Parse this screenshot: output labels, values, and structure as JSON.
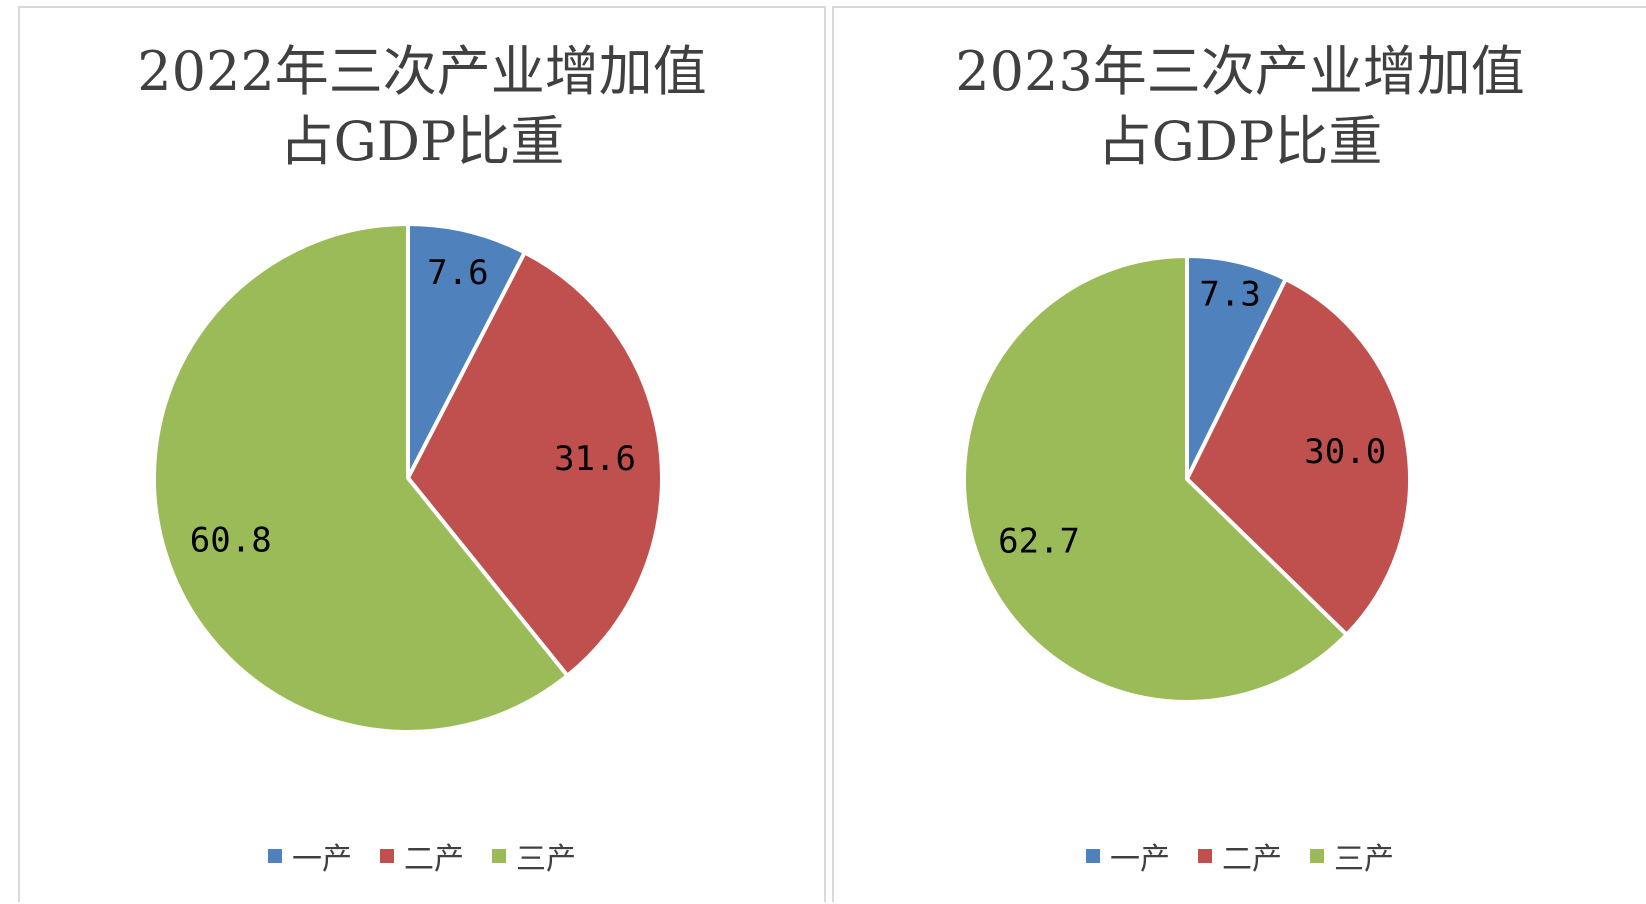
{
  "colors": {
    "primary": "#4f81bd",
    "secondary": "#c0504d",
    "tertiary": "#9bbb59"
  },
  "chart_data": [
    {
      "type": "pie",
      "title_line1": "2022年三次产业增加值",
      "title_line2": "占GDP比重",
      "categories": [
        "一产",
        "二产",
        "三产"
      ],
      "values": [
        7.6,
        31.6,
        60.8
      ],
      "labels": [
        "7.6",
        "31.6",
        "60.8"
      ],
      "legend": "bottom"
    },
    {
      "type": "pie",
      "title_line1": "2023年三次产业增加值",
      "title_line2": "占GDP比重",
      "categories": [
        "一产",
        "二产",
        "三产"
      ],
      "values": [
        7.3,
        30.0,
        62.7
      ],
      "labels": [
        "7.3",
        "30.0",
        "62.7"
      ],
      "legend": "bottom"
    }
  ]
}
